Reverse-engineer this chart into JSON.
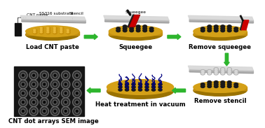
{
  "bg_color": "#ffffff",
  "arrow_color": "#2db52d",
  "gold_color": "#D4A017",
  "gold_dark": "#9A7200",
  "gold_mid": "#C49010",
  "gray_top": "#d8d8d8",
  "gray_side": "#b0b0b0",
  "gray_edge": "#909090",
  "black_dot": "#1a1a1a",
  "red_squeegee": "#cc0000",
  "dark_squeegee": "#222222",
  "navy_cnt": "#000080",
  "sem_bg": "#151515",
  "sem_ring_outer": "#787878",
  "sem_ring_mid": "#303030",
  "sem_ring_inner": "#585858",
  "sem_ring_center": "#101010",
  "steps": [
    "Load CNT paste",
    "Squeegee",
    "Remove squeegee",
    "Remove stencil",
    "Heat treatment in vacuum",
    "CNT dot arrays SEM image"
  ],
  "annot_fontsize": 4.2,
  "label_fontsize": 6.2,
  "figure_width": 3.78,
  "figure_height": 1.83,
  "dpi": 100
}
